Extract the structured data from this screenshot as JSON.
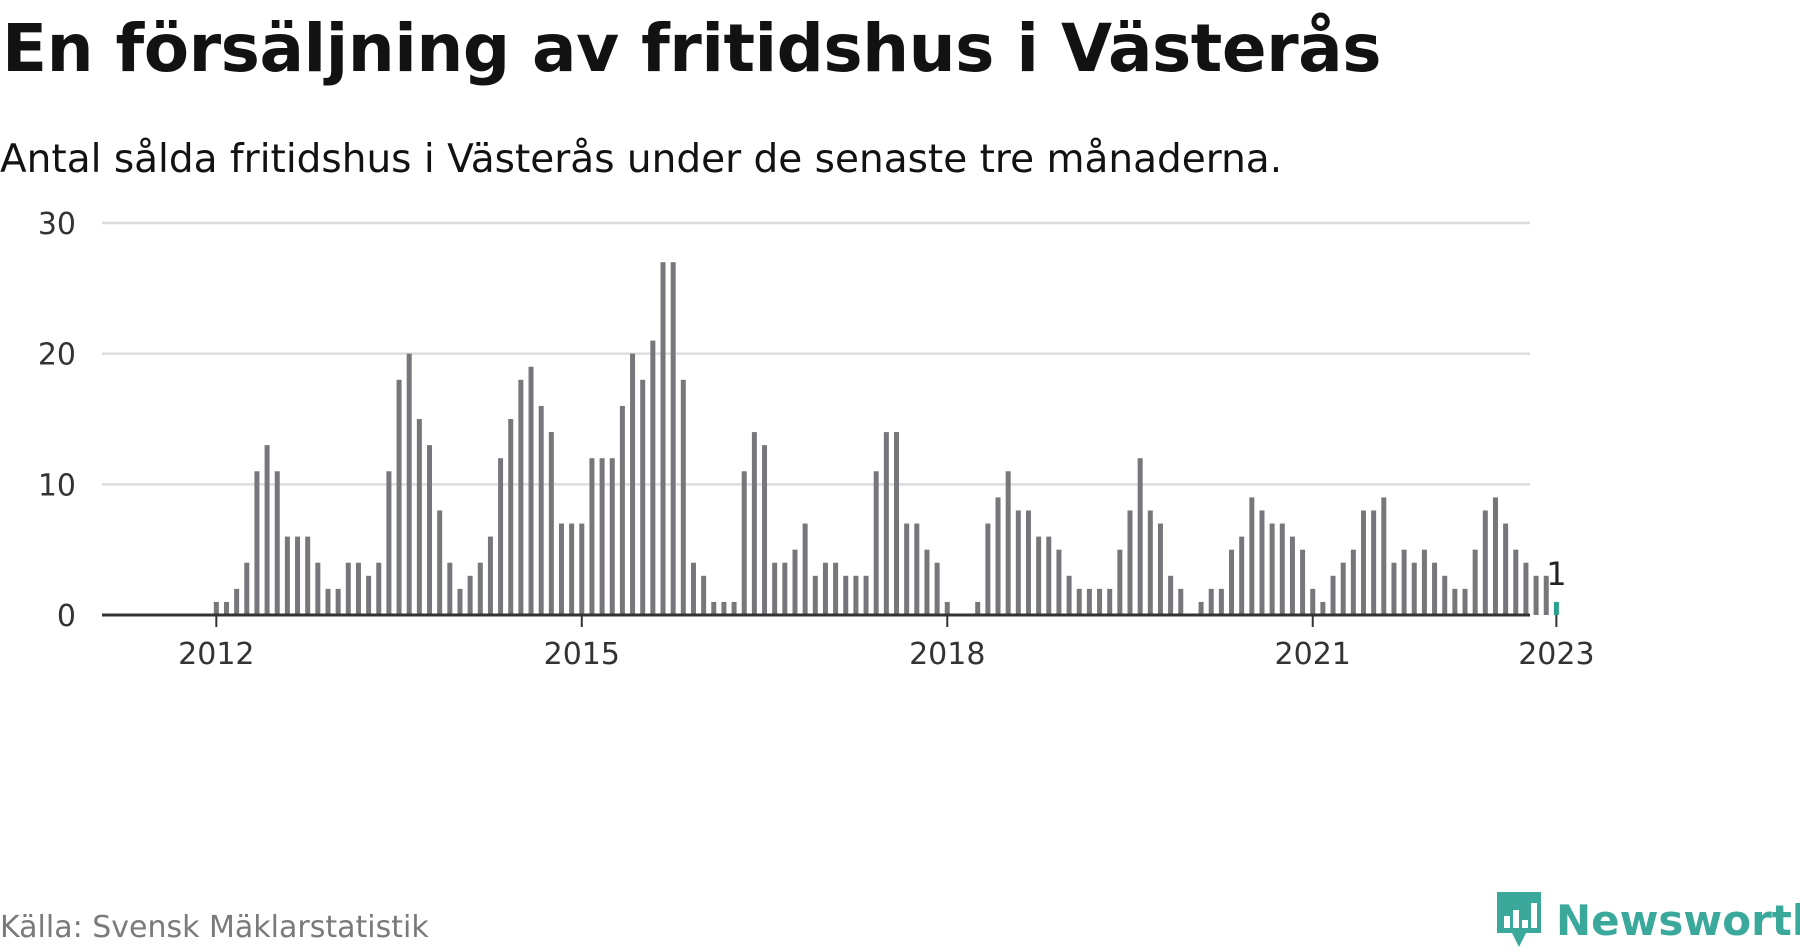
{
  "title": "En försäljning av fritidshus i Västerås",
  "subtitle": "Antal sålda fritidshus i Västerås under de senaste tre månaderna.",
  "source": "Källa: Svensk Mäklarstatistik",
  "brand": {
    "name": "Newsworthy",
    "icon": "newsworthy-logo-icon"
  },
  "colors": {
    "bar": "#77767b",
    "highlight": "#2aa08f",
    "gridline": "#dddddd",
    "axis": "#333333",
    "brand": "#3aa89b"
  },
  "chart_data": {
    "type": "bar",
    "title": "En försäljning av fritidshus i Västerås",
    "subtitle": "Antal sålda fritidshus i Västerås under de senaste tre månaderna.",
    "xlabel": "",
    "ylabel": "",
    "ylim": [
      0,
      30
    ],
    "y_ticks": [
      0,
      10,
      20,
      30
    ],
    "x_ticks": [
      {
        "label": "2012",
        "date": "2012-01"
      },
      {
        "label": "2015",
        "date": "2015-01"
      },
      {
        "label": "2018",
        "date": "2018-01"
      },
      {
        "label": "2021",
        "date": "2021-01"
      },
      {
        "label": "2023",
        "date": "2023-01"
      }
    ],
    "grid": true,
    "legend": "none",
    "start_month": "2011-01",
    "end_month": "2023-01",
    "highlight": {
      "date": "2023-01",
      "value": 1,
      "label": "1"
    },
    "values": [
      0,
      0,
      0,
      0,
      0,
      0,
      0,
      0,
      0,
      0,
      0,
      0,
      1,
      1,
      2,
      4,
      11,
      13,
      11,
      6,
      6,
      6,
      4,
      2,
      2,
      4,
      4,
      3,
      4,
      11,
      18,
      20,
      15,
      13,
      8,
      4,
      2,
      3,
      4,
      6,
      12,
      15,
      18,
      19,
      16,
      14,
      7,
      7,
      7,
      12,
      12,
      12,
      16,
      20,
      18,
      21,
      27,
      27,
      18,
      4,
      3,
      1,
      1,
      1,
      11,
      14,
      13,
      4,
      4,
      5,
      7,
      3,
      4,
      4,
      3,
      3,
      3,
      11,
      14,
      14,
      7,
      7,
      5,
      4,
      1,
      0,
      0,
      1,
      7,
      9,
      11,
      8,
      8,
      6,
      6,
      5,
      3,
      2,
      2,
      2,
      2,
      5,
      8,
      12,
      8,
      7,
      3,
      2,
      0,
      1,
      2,
      2,
      5,
      6,
      9,
      8,
      7,
      7,
      6,
      5,
      2,
      1,
      3,
      4,
      5,
      8,
      8,
      9,
      4,
      5,
      4,
      5,
      4,
      3,
      2,
      2,
      5,
      8,
      9,
      7,
      5,
      4,
      3,
      3,
      1
    ]
  }
}
